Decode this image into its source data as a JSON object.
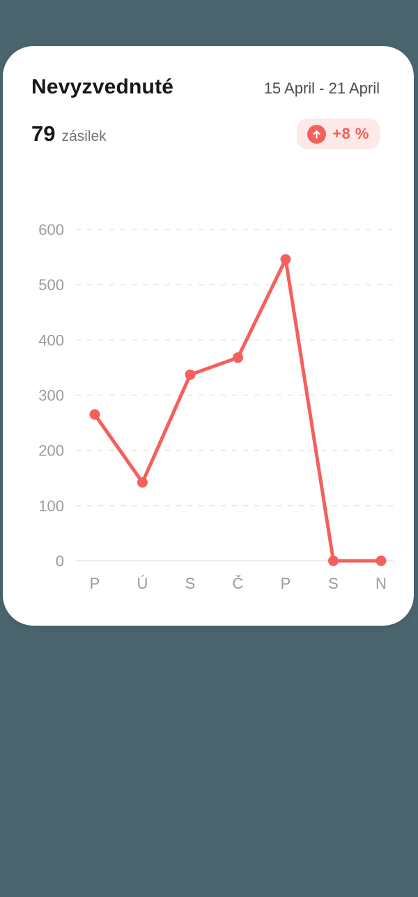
{
  "card": {
    "title": "Nevyzvednuté",
    "date_range": "15 April - 21 April",
    "count": "79",
    "count_unit": "zásilek",
    "trend_badge": {
      "label": "+8 %",
      "direction": "up",
      "icon": "arrow-up-icon"
    }
  },
  "colors": {
    "page_bg": "#4B666F",
    "card_bg": "#FFFFFF",
    "accent": "#F4605C",
    "badge_bg": "#FCE9E8",
    "grid_line": "#E4E4E4",
    "zero_line": "#ECECEC",
    "axis_text": "#9B9B9B",
    "title_text": "#15171B",
    "date_text": "#494D53",
    "unit_text": "#71757B"
  },
  "chart_data": {
    "type": "line",
    "title": "Nevyzvednuté",
    "categories": [
      "P",
      "Ú",
      "S",
      "Č",
      "P",
      "S",
      "N"
    ],
    "values": [
      265,
      142,
      337,
      368,
      546,
      0,
      0
    ],
    "ylim": [
      0,
      600
    ],
    "yticks": [
      0,
      100,
      200,
      300,
      400,
      500,
      600
    ],
    "xlabel": "",
    "ylabel": "",
    "grid": "horizontal-dashed",
    "legend": "none",
    "marker": "circle",
    "line_color": "#F4605C"
  }
}
